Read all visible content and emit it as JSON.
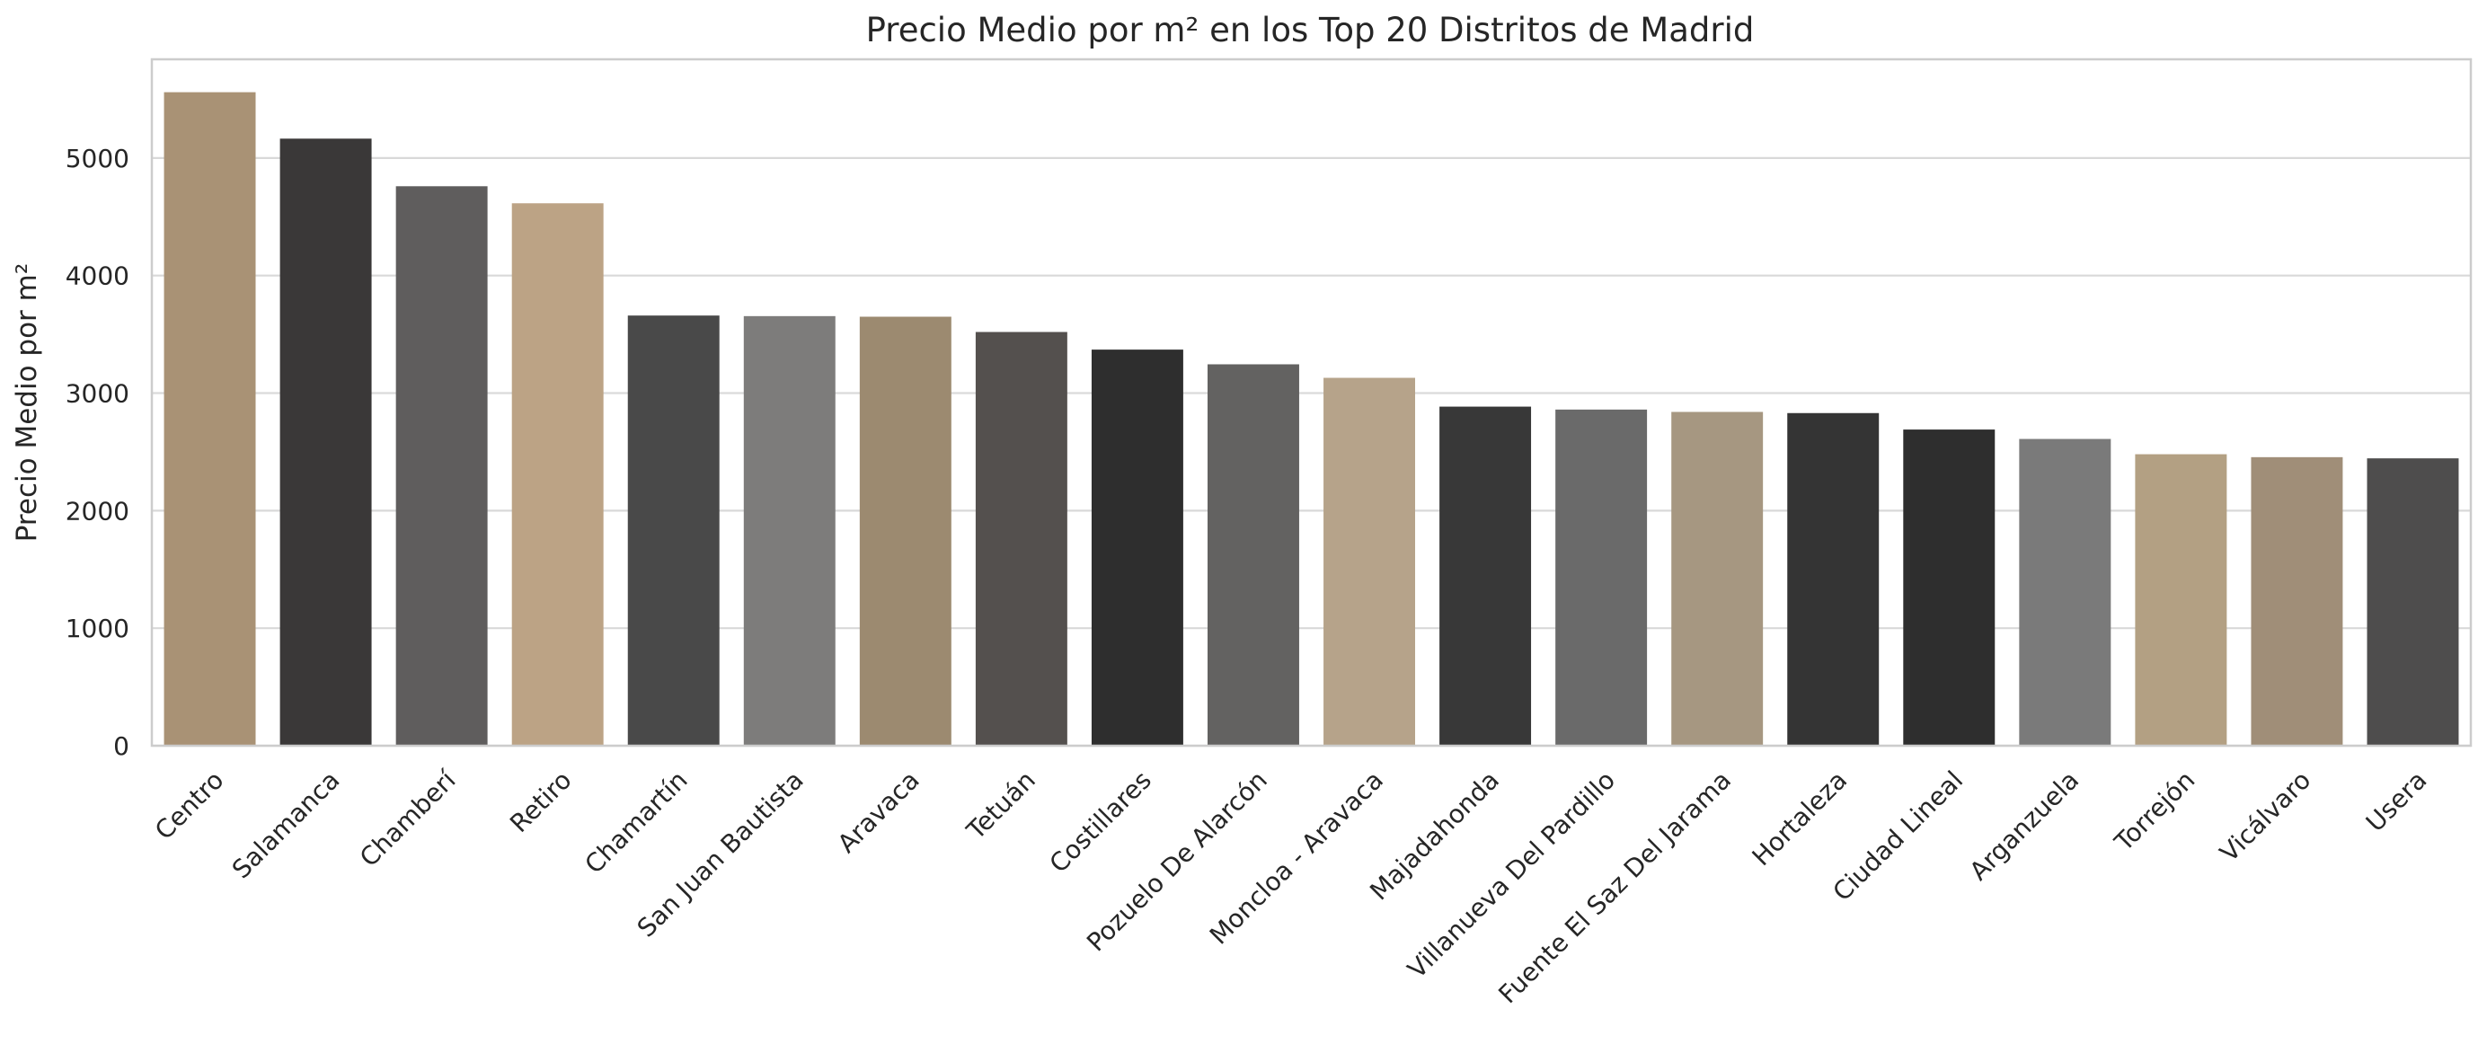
{
  "chart_data": {
    "type": "bar",
    "title": "Precio Medio por m² en los Top 20 Distritos de Madrid",
    "xlabel": "",
    "ylabel": "Precio Medio por m²",
    "ylim": [
      0,
      5840
    ],
    "yticks": [
      0,
      1000,
      2000,
      3000,
      4000,
      5000
    ],
    "grid": "horizontal",
    "categories": [
      "Centro",
      "Salamanca",
      "Chamberí",
      "Retiro",
      "Chamartín",
      "San Juan Bautista",
      "Aravaca",
      "Tetuán",
      "Costillares",
      "Pozuelo De Alarcón",
      "Moncloa - Aravaca",
      "Majadahonda",
      "Villanueva Del Pardillo",
      "Fuente El Saz Del Jarama",
      "Hortaleza",
      "Ciudad Lineal",
      "Arganzuela",
      "Torrejón",
      "Vicálvaro",
      "Usera"
    ],
    "values": [
      5560,
      5165,
      4760,
      4615,
      3660,
      3655,
      3650,
      3520,
      3370,
      3245,
      3130,
      2885,
      2860,
      2840,
      2830,
      2690,
      2610,
      2480,
      2455,
      2445
    ],
    "colors": [
      "#a99275",
      "#3a3838",
      "#5f5d5d",
      "#bca385",
      "#494949",
      "#7d7c7b",
      "#9c8a70",
      "#54504e",
      "#2e2e2e",
      "#636261",
      "#b6a38a",
      "#383838",
      "#6a6a6a",
      "#a69781",
      "#343434",
      "#2e2e2e",
      "#7a7a7a",
      "#b3a083",
      "#a08e78",
      "#4e4d4d"
    ]
  }
}
